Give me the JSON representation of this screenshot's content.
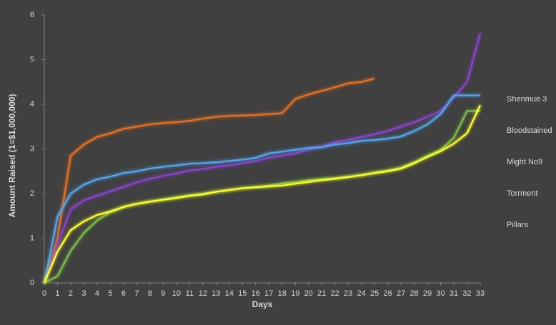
{
  "chart_data": {
    "type": "line",
    "x_label": "Days",
    "y_label": "Amount Raised (1=$1,000,000)",
    "x": [
      0,
      1,
      2,
      3,
      4,
      5,
      6,
      7,
      8,
      9,
      10,
      11,
      12,
      13,
      14,
      15,
      16,
      17,
      18,
      19,
      20,
      21,
      22,
      23,
      24,
      25,
      26,
      27,
      28,
      29,
      30,
      31,
      32,
      33
    ],
    "xlim": [
      0,
      33
    ],
    "xticks": [
      0,
      1,
      2,
      3,
      4,
      5,
      6,
      7,
      8,
      9,
      10,
      11,
      12,
      13,
      14,
      15,
      16,
      17,
      18,
      19,
      20,
      21,
      22,
      23,
      24,
      25,
      26,
      27,
      28,
      29,
      30,
      31,
      32,
      33
    ],
    "ylim": [
      0,
      6
    ],
    "yticks": [
      0,
      1,
      2,
      3,
      4,
      5,
      6
    ],
    "grid": false,
    "legend": "right",
    "series": [
      {
        "name": "Shenmue 3",
        "color": "#e8701a",
        "values": [
          0,
          1.0,
          2.85,
          3.1,
          3.27,
          3.35,
          3.45,
          3.5,
          3.55,
          3.58,
          3.6,
          3.63,
          3.68,
          3.72,
          3.74,
          3.75,
          3.76,
          3.78,
          3.8,
          4.12,
          4.22,
          4.3,
          4.38,
          4.47,
          4.5,
          4.58,
          null,
          null,
          null,
          null,
          null,
          null,
          null,
          null
        ]
      },
      {
        "name": "Bloodstained",
        "color": "#8a3fd0",
        "values": [
          0,
          0.85,
          1.65,
          1.85,
          1.95,
          2.05,
          2.15,
          2.25,
          2.33,
          2.4,
          2.45,
          2.52,
          2.55,
          2.6,
          2.63,
          2.68,
          2.73,
          2.8,
          2.85,
          2.9,
          2.98,
          3.05,
          3.15,
          3.2,
          3.27,
          3.33,
          3.4,
          3.5,
          3.6,
          3.72,
          3.85,
          4.15,
          4.5,
          5.6
        ]
      },
      {
        "name": "Might No9",
        "color": "#78c040",
        "values": [
          0,
          0.15,
          0.72,
          1.12,
          1.4,
          1.58,
          1.7,
          1.77,
          1.82,
          1.87,
          1.92,
          1.96,
          2.0,
          2.04,
          2.08,
          2.12,
          2.15,
          2.18,
          2.23,
          2.26,
          2.3,
          2.33,
          2.35,
          2.38,
          2.42,
          2.47,
          2.52,
          2.58,
          2.7,
          2.85,
          2.98,
          3.25,
          3.85,
          3.85
        ]
      },
      {
        "name": "Torrment",
        "color": "#4ea6f0",
        "values": [
          0,
          1.48,
          2.0,
          2.2,
          2.32,
          2.38,
          2.46,
          2.5,
          2.56,
          2.6,
          2.63,
          2.67,
          2.68,
          2.7,
          2.73,
          2.76,
          2.8,
          2.9,
          2.94,
          2.98,
          3.02,
          3.04,
          3.1,
          3.13,
          3.18,
          3.2,
          3.23,
          3.28,
          3.4,
          3.55,
          3.78,
          4.2,
          4.2,
          4.2
        ]
      },
      {
        "name": "Pillars",
        "color": "#ffff20",
        "values": [
          0,
          0.7,
          1.18,
          1.38,
          1.52,
          1.6,
          1.7,
          1.77,
          1.82,
          1.86,
          1.9,
          1.95,
          1.98,
          2.04,
          2.08,
          2.12,
          2.14,
          2.16,
          2.18,
          2.22,
          2.26,
          2.3,
          2.33,
          2.37,
          2.41,
          2.46,
          2.5,
          2.56,
          2.68,
          2.82,
          2.95,
          3.12,
          3.35,
          3.98
        ]
      }
    ]
  }
}
